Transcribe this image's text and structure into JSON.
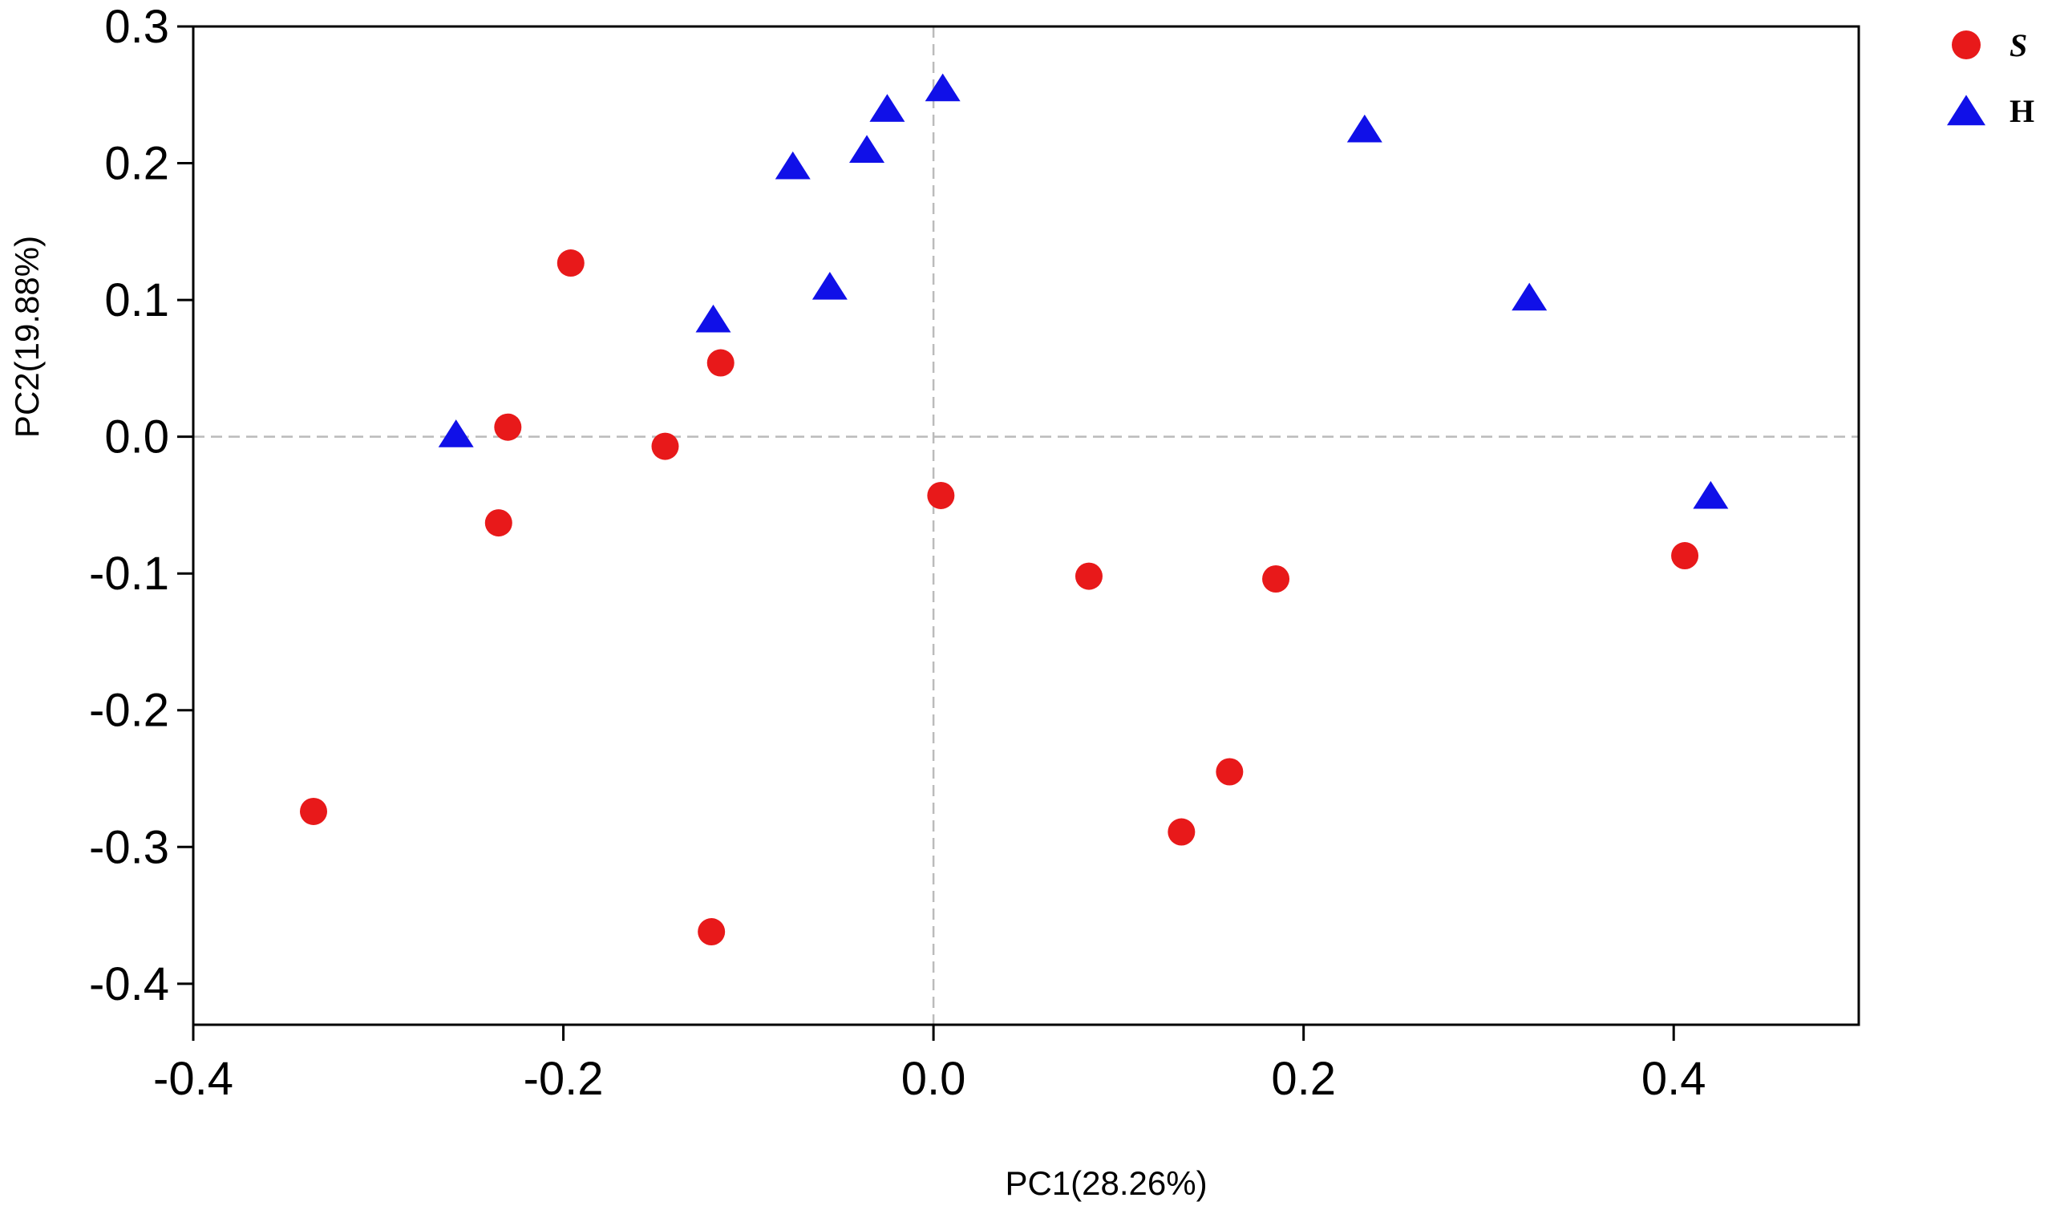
{
  "chart_data": {
    "type": "scatter",
    "title": "",
    "xlabel": "PC1(28.26%)",
    "ylabel": "PC2(19.88%)",
    "xlim": [
      -0.4,
      0.5
    ],
    "ylim": [
      -0.43,
      0.3
    ],
    "xticks": [
      -0.4,
      -0.2,
      0.0,
      0.2,
      0.4
    ],
    "xtick_labels": [
      "-0.4",
      "-0.2",
      "0.0",
      "0.2",
      "0.4"
    ],
    "yticks": [
      0.3,
      0.2,
      0.1,
      0.0,
      -0.1,
      -0.2,
      -0.3,
      -0.4
    ],
    "ytick_labels": [
      "0.3",
      "0.2",
      "0.1",
      "0.0",
      "-0.1",
      "-0.2",
      "-0.3",
      "-0.4"
    ],
    "reference_lines": {
      "x": 0.0,
      "y": 0.0,
      "style": "dashed",
      "color": "#bbbbbb"
    },
    "grid": false,
    "legend": {
      "placement": "top-right-outside"
    },
    "series": [
      {
        "name": "S",
        "marker": "circle",
        "color": "#e8191a",
        "points": [
          [
            -0.196,
            0.127
          ],
          [
            -0.23,
            0.007
          ],
          [
            -0.235,
            -0.063
          ],
          [
            -0.145,
            -0.007
          ],
          [
            -0.115,
            0.054
          ],
          [
            -0.335,
            -0.274
          ],
          [
            -0.12,
            -0.362
          ],
          [
            0.004,
            -0.043
          ],
          [
            0.084,
            -0.102
          ],
          [
            0.185,
            -0.104
          ],
          [
            0.16,
            -0.245
          ],
          [
            0.134,
            -0.289
          ],
          [
            0.406,
            -0.087
          ]
        ]
      },
      {
        "name": "H",
        "marker": "triangle",
        "color": "#1010e8",
        "points": [
          [
            -0.258,
            0.001
          ],
          [
            -0.119,
            0.085
          ],
          [
            -0.056,
            0.109
          ],
          [
            -0.076,
            0.197
          ],
          [
            -0.036,
            0.209
          ],
          [
            -0.025,
            0.239
          ],
          [
            0.005,
            0.254
          ],
          [
            0.233,
            0.224
          ],
          [
            0.322,
            0.101
          ],
          [
            0.42,
            -0.044
          ]
        ]
      }
    ]
  }
}
